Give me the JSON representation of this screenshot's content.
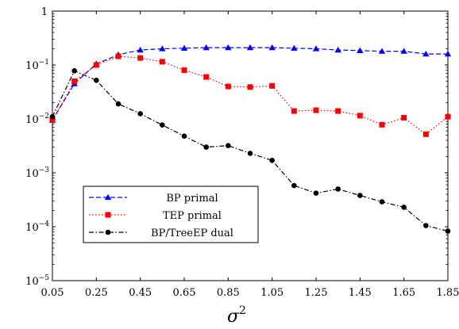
{
  "chart_data": {
    "type": "line",
    "xlabel": "σ",
    "xlabel_sup": "2",
    "ylabel": "",
    "y_scale": "log",
    "xlim": [
      0.05,
      1.85
    ],
    "ylim": [
      1e-05,
      1
    ],
    "x_ticks": [
      "0.05",
      "0.25",
      "0.45",
      "0.65",
      "0.85",
      "1.05",
      "1.25",
      "1.45",
      "1.65",
      "1.85"
    ],
    "y_ticks": [
      {
        "value": 1e-05,
        "base": "10",
        "exp": "−5"
      },
      {
        "value": 0.0001,
        "base": "10",
        "exp": "−4"
      },
      {
        "value": 0.001,
        "base": "10",
        "exp": "−3"
      },
      {
        "value": 0.01,
        "base": "10",
        "exp": "−2"
      },
      {
        "value": 0.1,
        "base": "10",
        "exp": "−1"
      },
      {
        "value": 1,
        "base": "1",
        "exp": ""
      }
    ],
    "grid": false,
    "legend_position": "bottom-left",
    "x": [
      0.05,
      0.15,
      0.25,
      0.35,
      0.45,
      0.55,
      0.65,
      0.75,
      0.85,
      0.95,
      1.05,
      1.15,
      1.25,
      1.35,
      1.45,
      1.55,
      1.65,
      1.75,
      1.85
    ],
    "series": [
      {
        "name": "BP primal",
        "color": "#0000ff",
        "marker": "triangle",
        "dash": "dashed",
        "values": [
          0.0095,
          0.045,
          0.105,
          0.155,
          0.19,
          0.2,
          0.205,
          0.21,
          0.21,
          0.21,
          0.21,
          0.205,
          0.2,
          0.19,
          0.185,
          0.18,
          0.18,
          0.16,
          0.16
        ]
      },
      {
        "name": "TEP primal",
        "color": "#ff0000",
        "marker": "square",
        "dash": "dotted",
        "values": [
          0.0095,
          0.05,
          0.1,
          0.145,
          0.135,
          0.115,
          0.08,
          0.06,
          0.04,
          0.039,
          0.041,
          0.014,
          0.0145,
          0.014,
          0.0115,
          0.0078,
          0.0105,
          0.0052,
          0.011
        ]
      },
      {
        "name": "BP/TreeEP dual",
        "color": "#000000",
        "marker": "circle",
        "dash": "dashdot",
        "values": [
          0.011,
          0.078,
          0.052,
          0.019,
          0.0125,
          0.0077,
          0.0048,
          0.003,
          0.0032,
          0.0023,
          0.0017,
          0.00058,
          0.00042,
          0.0005,
          0.00038,
          0.00029,
          0.00023,
          0.000105,
          8.3e-05
        ]
      }
    ]
  }
}
